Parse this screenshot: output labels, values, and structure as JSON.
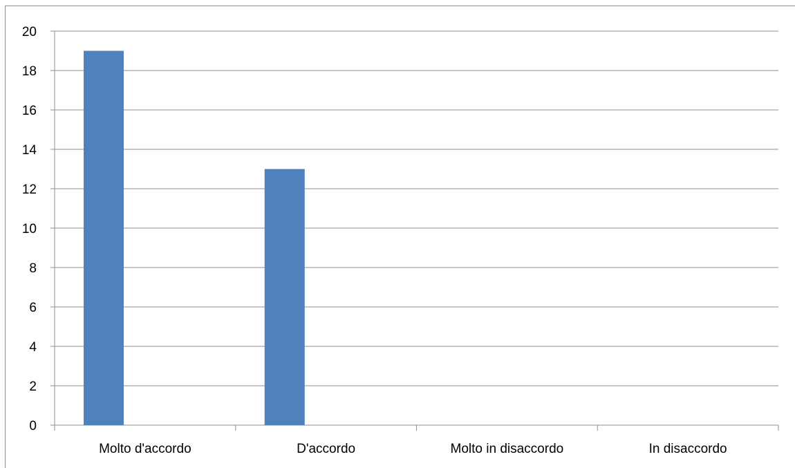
{
  "chart_data": {
    "type": "bar",
    "title": "",
    "xlabel": "",
    "ylabel": "",
    "categories": [
      "Molto d'accordo",
      "D'accordo",
      "Molto in disaccordo",
      "In disaccordo"
    ],
    "series": [
      {
        "values": [
          19,
          13,
          0,
          0
        ]
      }
    ],
    "ylim": [
      0,
      20
    ],
    "yticks": [
      0,
      2,
      4,
      6,
      8,
      10,
      12,
      14,
      16,
      18,
      20
    ],
    "ytick_labels": [
      "0",
      "2",
      "4",
      "6",
      "8",
      "10",
      "12",
      "14",
      "16",
      "18",
      "20"
    ],
    "grid": true,
    "legend": "none",
    "colors": {
      "bar": "#4f81bd",
      "gridline": "#8c8c8c",
      "axis": "#8c8c8c"
    }
  }
}
